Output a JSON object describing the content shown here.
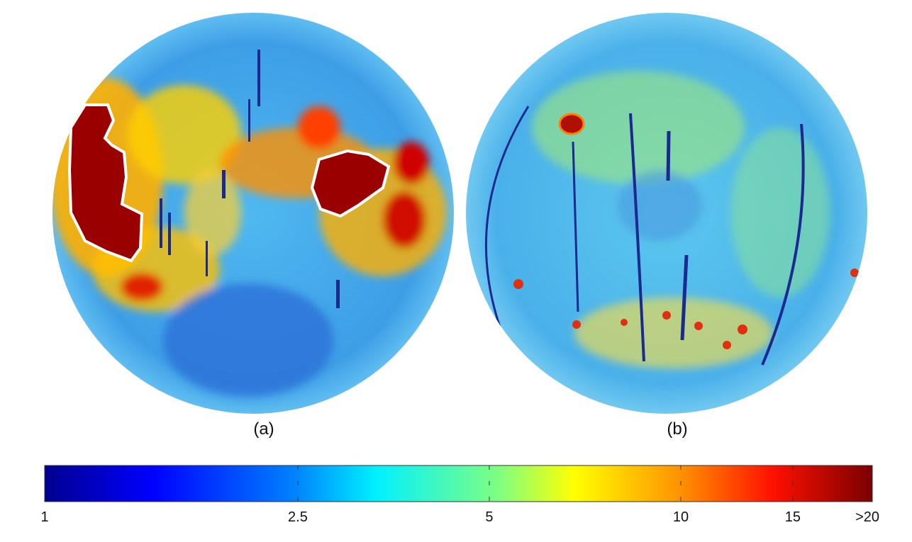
{
  "chart_data": {
    "type": "heatmap",
    "panels": [
      {
        "label": "(a)",
        "description_kind": "lunar near side map"
      },
      {
        "label": "(b)",
        "description_kind": "lunar far side map"
      }
    ],
    "colorbar": {
      "scale": "log",
      "range": [
        1,
        20
      ],
      "ticks": [
        1,
        2.5,
        5,
        10,
        15,
        20
      ],
      "tick_labels": [
        "1",
        "2.5",
        "5",
        "10",
        "15",
        ">20"
      ],
      "colormap": "jet"
    },
    "colors": {
      "low": "#00008f",
      "mid_low": "#00bfff",
      "mid": "#7fff7f",
      "mid_high": "#ffff00",
      "high": "#ff2000",
      "max": "#800000",
      "outline": "#ffffff",
      "background_field": "#3fa6e6"
    }
  }
}
